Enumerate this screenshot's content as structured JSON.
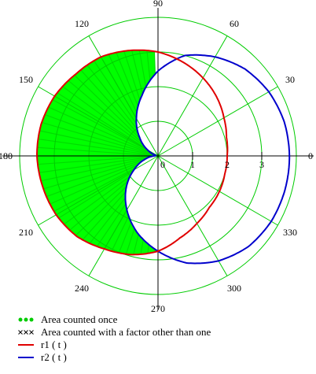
{
  "chart_data": {
    "type": "polar-line",
    "r_ticks": [
      0,
      1,
      2,
      3
    ],
    "r_max": 4,
    "theta_ticks_deg": [
      0,
      30,
      60,
      90,
      120,
      150,
      180,
      210,
      240,
      270,
      300,
      330
    ],
    "angle_labels": [
      "0",
      "30",
      "60",
      "90",
      "120",
      "150",
      "180",
      "210",
      "240",
      "270",
      "300",
      "330"
    ],
    "grid": true,
    "colors": {
      "grid": "#00cc00",
      "axis": "#000000",
      "r1": "#e00000",
      "r2": "#0000cc",
      "fill": "#00ff00"
    },
    "series": [
      {
        "name": "r1 ( t )",
        "key": "r1",
        "points": [
          [
            0,
            2.0
          ],
          [
            15,
            2.05
          ],
          [
            30,
            2.2
          ],
          [
            45,
            2.4
          ],
          [
            60,
            2.6
          ],
          [
            75,
            2.8
          ],
          [
            90,
            3.0
          ],
          [
            105,
            3.15
          ],
          [
            120,
            3.3
          ],
          [
            135,
            3.35
          ],
          [
            150,
            3.45
          ],
          [
            165,
            3.5
          ],
          [
            180,
            3.5
          ],
          [
            195,
            3.45
          ],
          [
            210,
            3.4
          ],
          [
            225,
            3.3
          ],
          [
            240,
            3.1
          ],
          [
            255,
            2.95
          ],
          [
            270,
            2.75
          ],
          [
            285,
            2.45
          ],
          [
            300,
            2.25
          ],
          [
            315,
            2.1
          ],
          [
            330,
            2.05
          ],
          [
            345,
            2.0
          ],
          [
            360,
            2.0
          ]
        ]
      },
      {
        "name": "r2 ( t )",
        "key": "r2",
        "points": [
          [
            0,
            3.8
          ],
          [
            15,
            3.78
          ],
          [
            30,
            3.7
          ],
          [
            45,
            3.55
          ],
          [
            60,
            3.3
          ],
          [
            75,
            3.0
          ],
          [
            90,
            2.45
          ],
          [
            105,
            1.8
          ],
          [
            120,
            1.25
          ],
          [
            135,
            0.75
          ],
          [
            150,
            0.35
          ],
          [
            165,
            0.05
          ],
          [
            180,
            0.1
          ],
          [
            195,
            0.4
          ],
          [
            210,
            0.8
          ],
          [
            225,
            1.3
          ],
          [
            240,
            1.8
          ],
          [
            255,
            2.3
          ],
          [
            270,
            2.75
          ],
          [
            285,
            3.2
          ],
          [
            300,
            3.5
          ],
          [
            315,
            3.7
          ],
          [
            330,
            3.78
          ],
          [
            345,
            3.8
          ],
          [
            360,
            3.8
          ]
        ]
      }
    ],
    "legend": [
      {
        "label": "Area counted once",
        "symbol": "dots",
        "color": "#00cc00"
      },
      {
        "label": "Area counted with a factor other than one",
        "symbol": "crosses",
        "color": "#000000"
      },
      {
        "label": "r1 ( t )",
        "symbol": "line",
        "color": "#e00000"
      },
      {
        "label": "r2 ( t )",
        "symbol": "line",
        "color": "#0000cc"
      }
    ]
  }
}
